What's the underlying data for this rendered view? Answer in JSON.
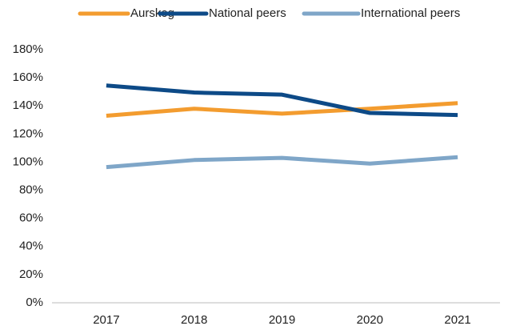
{
  "chart_data": {
    "type": "line",
    "categories": [
      "2017",
      "2018",
      "2019",
      "2020",
      "2021"
    ],
    "series": [
      {
        "name": "Aurskog",
        "color": "#f39c2f",
        "values": [
          133,
          138,
          134.5,
          138,
          142
        ]
      },
      {
        "name": "National peers",
        "color": "#0d4a87",
        "values": [
          154.5,
          149.5,
          148,
          135,
          133.5
        ]
      },
      {
        "name": "International peers",
        "color": "#7fa6c8",
        "values": [
          96.5,
          101.5,
          103,
          99,
          103.5
        ]
      }
    ],
    "ylim": [
      0,
      180
    ],
    "yticks": [
      {
        "value": 0,
        "label": "0%"
      },
      {
        "value": 20,
        "label": "20%"
      },
      {
        "value": 40,
        "label": "40%"
      },
      {
        "value": 60,
        "label": "60%"
      },
      {
        "value": 80,
        "label": "80%"
      },
      {
        "value": 100,
        "label": "100%"
      },
      {
        "value": 120,
        "label": "120%"
      },
      {
        "value": 140,
        "label": "140%"
      },
      {
        "value": 160,
        "label": "160%"
      },
      {
        "value": 180,
        "label": "180%"
      }
    ],
    "grid": false,
    "legend": "top"
  }
}
